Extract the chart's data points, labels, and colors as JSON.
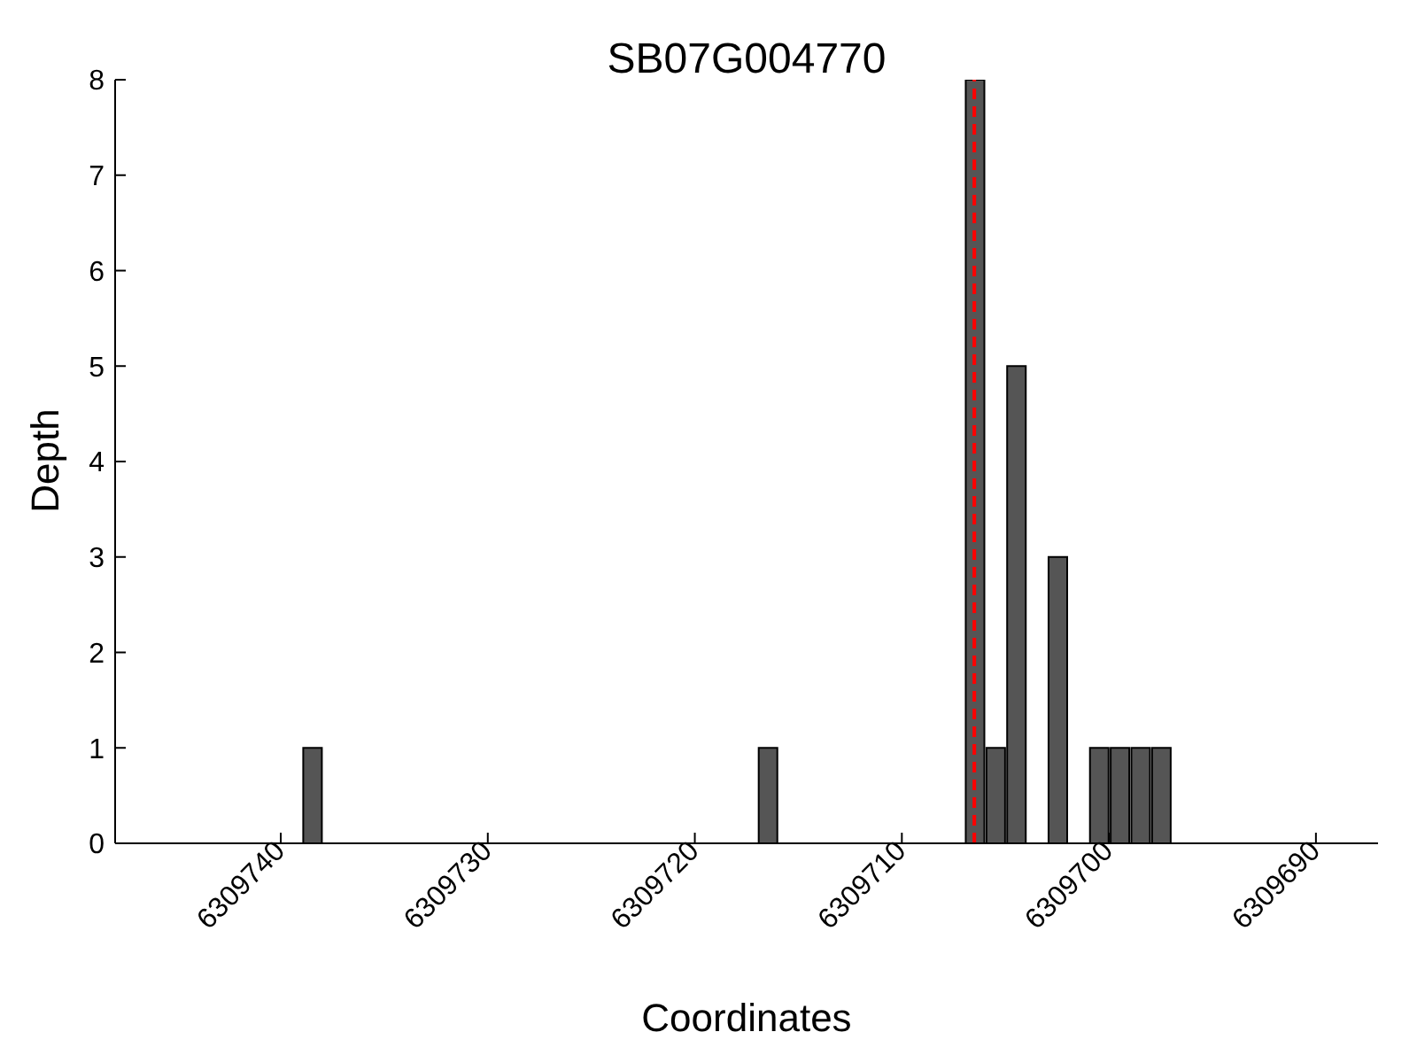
{
  "chart_data": {
    "type": "bar",
    "title": "SB07G004770",
    "xlabel": "Coordinates",
    "ylabel": "Depth",
    "x": [
      6309738.5,
      6309716.5,
      6309706.5,
      6309705.5,
      6309704.5,
      6309702.5,
      6309700.5,
      6309699.5,
      6309698.5,
      6309697.5
    ],
    "values": [
      1,
      1,
      8,
      1,
      5,
      3,
      1,
      1,
      1,
      1
    ],
    "color": "#555555",
    "xlim": [
      6309748,
      6309687
    ],
    "xticks": [
      6309740,
      6309730,
      6309720,
      6309710,
      6309700,
      6309690
    ],
    "ylim": [
      0,
      8
    ],
    "yticks": [
      0,
      1,
      2,
      3,
      4,
      5,
      6,
      7,
      8
    ],
    "ref_lines": [
      {
        "axis": "x",
        "value": 6309706.5,
        "color": "#ff0000",
        "line_style": "dashed"
      }
    ],
    "grid": false,
    "legend": false
  }
}
